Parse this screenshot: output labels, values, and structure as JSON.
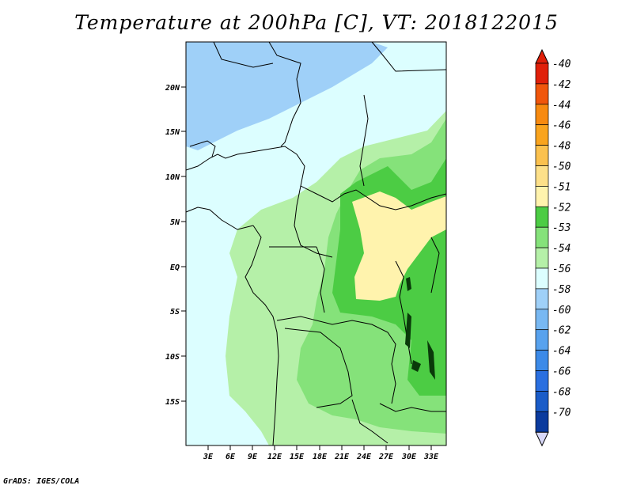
{
  "title": "Temperature at 200hPa [C], VT: 2018122015",
  "footer": "GrADS: IGES/COLA",
  "colors": {
    "c_m70": "#0a0a6e",
    "c_m68": "#0b3b9e",
    "c_m66": "#1a5cc8",
    "c_m64": "#2a6fe0",
    "c_m62": "#3c8ae8",
    "c_m60": "#58a2ee",
    "c_m58": "#78b8f2",
    "c_m56": "#9fd0f8",
    "c_m54": "#dcfeff",
    "c_m53": "#b5f0a8",
    "c_m52": "#85e27a",
    "c_m51b": "#4ccc44",
    "c_m51": "#fff3ad",
    "c_m50": "#fde089",
    "c_m48": "#fbc14e",
    "c_m46": "#f9a41e",
    "c_m44": "#f78a10",
    "c_m42": "#f0560c",
    "c_m40": "#e0200a"
  },
  "axes": {
    "lon_ticks": [
      "3E",
      "6E",
      "9E",
      "12E",
      "15E",
      "18E",
      "21E",
      "24E",
      "27E",
      "30E",
      "33E"
    ],
    "lat_ticks": [
      "20N",
      "15N",
      "10N",
      "5N",
      "EQ",
      "5S",
      "10S",
      "15S"
    ]
  },
  "colorbar": {
    "labels": [
      "-40",
      "-42",
      "-44",
      "-46",
      "-48",
      "-50",
      "-51",
      "-52",
      "-53",
      "-54",
      "-56",
      "-58",
      "-60",
      "-62",
      "-64",
      "-66",
      "-68",
      "-70"
    ],
    "colors": [
      "#e0200a",
      "#f0560c",
      "#f78a10",
      "#f9a41e",
      "#fbc14e",
      "#fde089",
      "#fff3ad",
      "#4ccc44",
      "#85e27a",
      "#b5f0a8",
      "#dcfeff",
      "#9fd0f8",
      "#78b8f2",
      "#58a2ee",
      "#3c8ae8",
      "#2a6fe0",
      "#1a5cc8",
      "#0b3b9e"
    ]
  }
}
